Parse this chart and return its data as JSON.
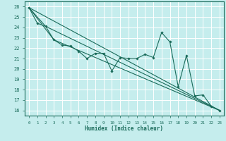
{
  "title": "",
  "xlabel": "Humidex (Indice chaleur)",
  "xlim": [
    -0.5,
    23.5
  ],
  "ylim": [
    15.5,
    26.5
  ],
  "yticks": [
    16,
    17,
    18,
    19,
    20,
    21,
    22,
    23,
    24,
    25,
    26
  ],
  "xticks": [
    0,
    1,
    2,
    3,
    4,
    5,
    6,
    7,
    8,
    9,
    10,
    11,
    12,
    13,
    14,
    15,
    16,
    17,
    18,
    19,
    20,
    21,
    22,
    23
  ],
  "bg_color": "#c5eded",
  "grid_color": "#ffffff",
  "line_color": "#1a6b5a",
  "line1_x": [
    0,
    1,
    2,
    3,
    4,
    5,
    6,
    7,
    8,
    9,
    10,
    11,
    12,
    13,
    14,
    15,
    16,
    17,
    18,
    19,
    20,
    21,
    22,
    23
  ],
  "line1_y": [
    25.9,
    24.4,
    24.1,
    22.8,
    22.3,
    22.2,
    21.7,
    21.0,
    21.5,
    21.5,
    19.8,
    21.1,
    21.0,
    21.0,
    21.4,
    21.1,
    23.5,
    22.6,
    18.3,
    21.3,
    17.4,
    17.5,
    16.4,
    16.0
  ],
  "line2_x": [
    0,
    23
  ],
  "line2_y": [
    25.9,
    16.0
  ],
  "line3_x": [
    0,
    2,
    23
  ],
  "line3_y": [
    25.9,
    24.1,
    16.0
  ],
  "line4_x": [
    0,
    3,
    23
  ],
  "line4_y": [
    25.9,
    22.8,
    16.0
  ]
}
